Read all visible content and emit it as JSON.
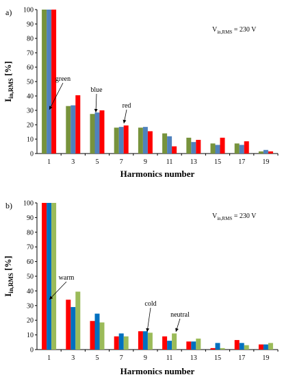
{
  "chart_data": [
    {
      "type": "bar",
      "panel_label": "a)",
      "categories": [
        "1",
        "3",
        "5",
        "7",
        "9",
        "11",
        "13",
        "15",
        "17",
        "19"
      ],
      "series": [
        {
          "color": "#77933C",
          "values": [
            100,
            33.0,
            27.5,
            18.0,
            18.0,
            14.0,
            11.0,
            7.0,
            7.0,
            1.5
          ]
        },
        {
          "color": "#4F81BD",
          "values": [
            100,
            33.5,
            28.5,
            18.5,
            18.5,
            12.0,
            8.0,
            6.0,
            6.0,
            2.5
          ]
        },
        {
          "color": "#FF0000",
          "values": [
            100,
            40.5,
            30.0,
            19.5,
            15.5,
            5.0,
            9.5,
            11.0,
            8.5,
            1.5
          ]
        }
      ],
      "xlabel": "Harmonics number",
      "ylabel_main": "I",
      "ylabel_sub": "in,RMS",
      "ylabel_unit": " [%]",
      "ylim": [
        0,
        100
      ],
      "yticks": [
        0,
        10,
        20,
        30,
        40,
        50,
        60,
        70,
        80,
        90,
        100
      ],
      "grid": false,
      "vin_main": "V",
      "vin_sub": "in,RMS",
      "vin_value": " = 230 V",
      "annotations": [
        {
          "text": "green",
          "category": "3",
          "series": 0
        },
        {
          "text": "blue",
          "category": "5",
          "series": 1
        },
        {
          "text": "red",
          "category": "7",
          "series": 2
        }
      ]
    },
    {
      "type": "bar",
      "panel_label": "b)",
      "categories": [
        "1",
        "3",
        "5",
        "7",
        "9",
        "11",
        "13",
        "15",
        "17",
        "19"
      ],
      "series": [
        {
          "color": "#FF0000",
          "values": [
            100,
            34.0,
            19.5,
            9.0,
            12.5,
            9.0,
            5.5,
            1.0,
            6.5,
            3.5
          ]
        },
        {
          "color": "#0070C0",
          "values": [
            100,
            29.0,
            24.5,
            11.0,
            12.5,
            6.0,
            5.5,
            4.5,
            4.5,
            3.5
          ]
        },
        {
          "color": "#9BBB59",
          "values": [
            100,
            39.5,
            18.5,
            9.0,
            11.5,
            11.0,
            7.5,
            1.0,
            3.0,
            4.5
          ]
        }
      ],
      "xlabel": "Harmonics number",
      "ylabel_main": "I",
      "ylabel_sub": "in,RMS",
      "ylabel_unit": " [%]",
      "ylim": [
        0,
        100
      ],
      "yticks": [
        0,
        10,
        20,
        30,
        40,
        50,
        60,
        70,
        80,
        90,
        100
      ],
      "grid": false,
      "vin_main": "V",
      "vin_sub": "in,RMS",
      "vin_value": " = 230 V",
      "annotations": [
        {
          "text": "warm",
          "category": "3",
          "series": 0
        },
        {
          "text": "cold",
          "category": "9",
          "series": 1
        },
        {
          "text": "neutral",
          "category": "11",
          "series": 2
        }
      ]
    }
  ]
}
